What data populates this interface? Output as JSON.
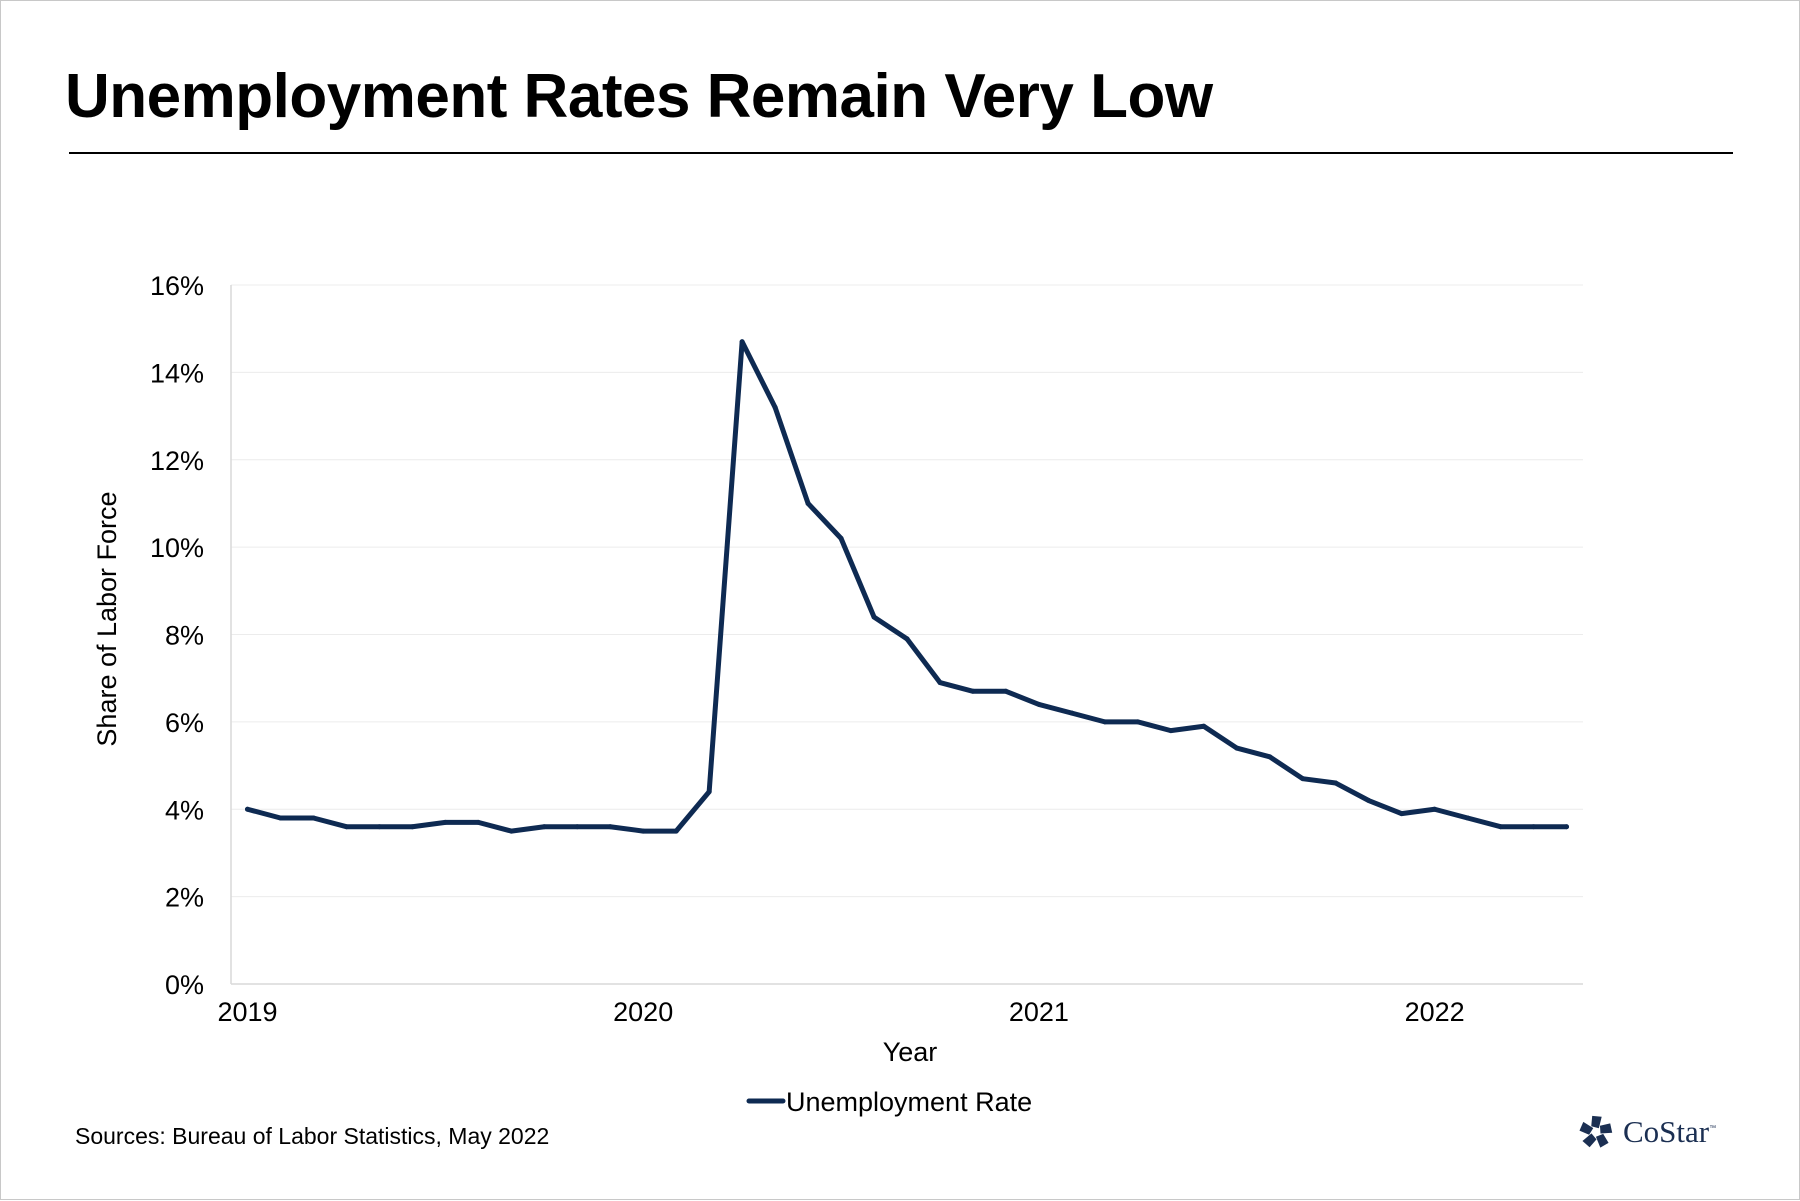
{
  "title": "Unemployment Rates Remain Very Low",
  "source": "Sources: Bureau of Labor Statistics, May 2022",
  "logo": {
    "text": "CoStar",
    "tm": "™"
  },
  "colors": {
    "line": "#0e2a52",
    "grid": "#ececec",
    "axis": "#d9d9d9",
    "logo": "#1b2f52"
  },
  "chart_data": {
    "type": "line",
    "title": "",
    "xlabel": "Year",
    "ylabel": "Share of Labor Force",
    "xlim": [
      "2019-01",
      "2022-05"
    ],
    "ylim": [
      0,
      16
    ],
    "yticks": [
      0,
      2,
      4,
      6,
      8,
      10,
      12,
      14,
      16
    ],
    "ytick_labels": [
      "0%",
      "2%",
      "4%",
      "6%",
      "8%",
      "10%",
      "12%",
      "14%",
      "16%"
    ],
    "xticks": [
      "2019-01",
      "2020-01",
      "2021-01",
      "2022-01"
    ],
    "xtick_labels": [
      "2019",
      "2020",
      "2021",
      "2022"
    ],
    "grid": true,
    "legend": {
      "placement": "bottom",
      "entries": [
        "Unemployment Rate"
      ]
    },
    "series": [
      {
        "name": "Unemployment Rate",
        "color": "#0e2a52",
        "x": [
          "2019-01",
          "2019-02",
          "2019-03",
          "2019-04",
          "2019-05",
          "2019-06",
          "2019-07",
          "2019-08",
          "2019-09",
          "2019-10",
          "2019-11",
          "2019-12",
          "2020-01",
          "2020-02",
          "2020-03",
          "2020-04",
          "2020-05",
          "2020-06",
          "2020-07",
          "2020-08",
          "2020-09",
          "2020-10",
          "2020-11",
          "2020-12",
          "2021-01",
          "2021-02",
          "2021-03",
          "2021-04",
          "2021-05",
          "2021-06",
          "2021-07",
          "2021-08",
          "2021-09",
          "2021-10",
          "2021-11",
          "2021-12",
          "2022-01",
          "2022-02",
          "2022-03",
          "2022-04",
          "2022-05"
        ],
        "values": [
          4.0,
          3.8,
          3.8,
          3.6,
          3.6,
          3.6,
          3.7,
          3.7,
          3.5,
          3.6,
          3.6,
          3.6,
          3.5,
          3.5,
          4.4,
          14.7,
          13.2,
          11.0,
          10.2,
          8.4,
          7.9,
          6.9,
          6.7,
          6.7,
          6.4,
          6.2,
          6.0,
          6.0,
          5.8,
          5.9,
          5.4,
          5.2,
          4.7,
          4.6,
          4.2,
          3.9,
          4.0,
          3.8,
          3.6,
          3.6,
          3.6
        ]
      }
    ]
  }
}
